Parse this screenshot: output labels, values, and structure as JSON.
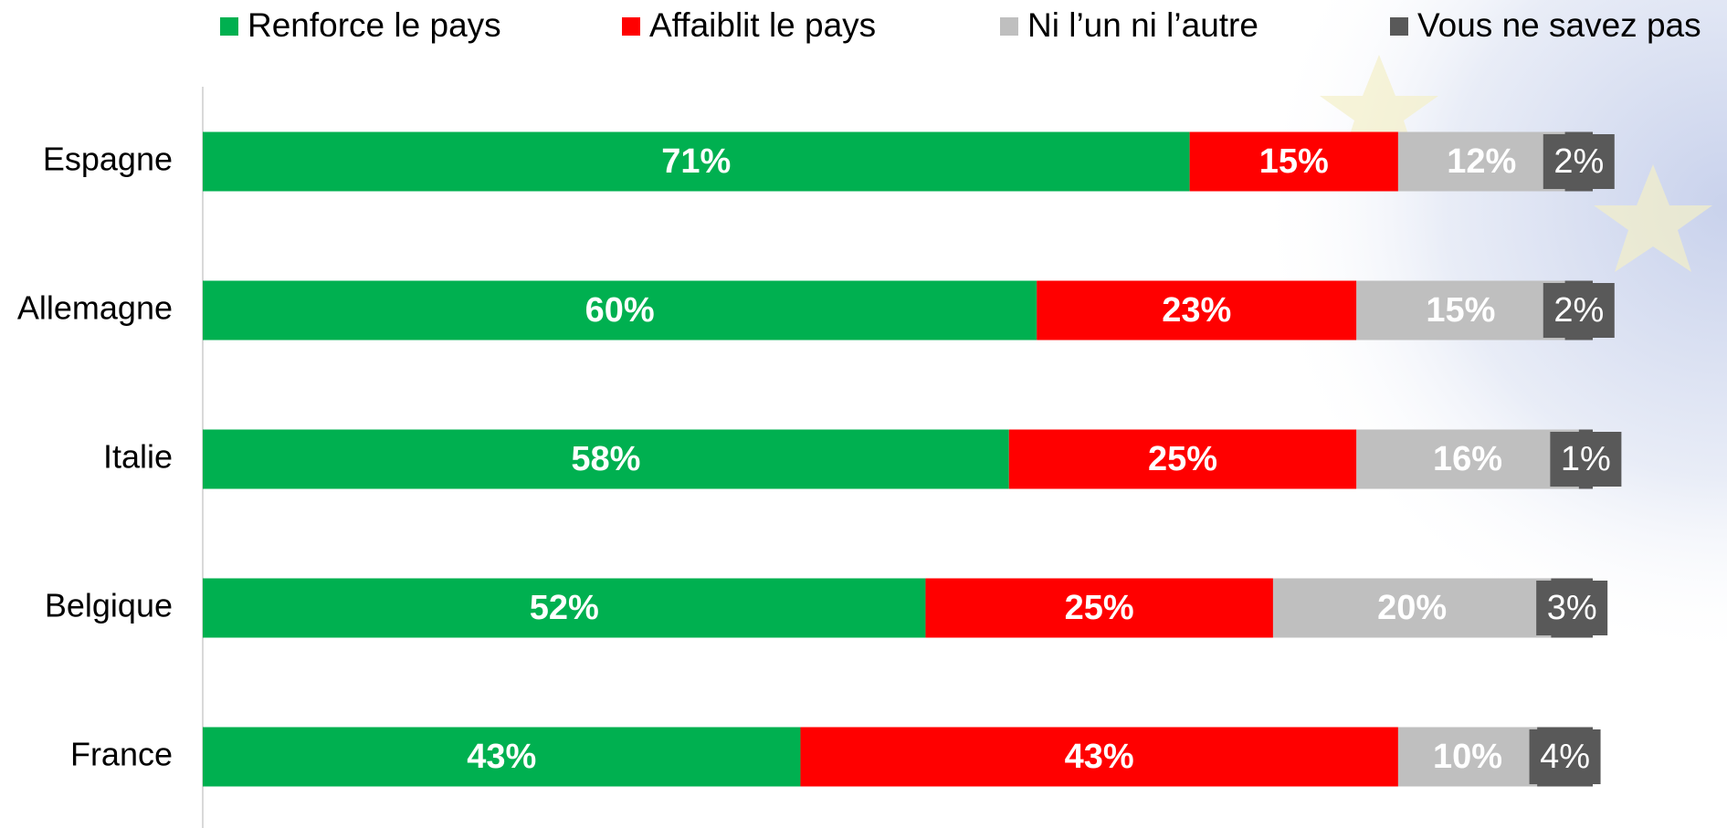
{
  "chart_data": {
    "type": "stacked-bar-horizontal",
    "categories": [
      "Espagne",
      "Allemagne",
      "Italie",
      "Belgique",
      "France"
    ],
    "series": [
      {
        "name": "Renforce le pays",
        "color": "#00b050",
        "values": [
          71,
          60,
          58,
          52,
          43
        ],
        "value_labels": [
          "71%",
          "60%",
          "58%",
          "52%",
          "43%"
        ]
      },
      {
        "name": "Affaiblit le pays",
        "color": "#ff0000",
        "values": [
          15,
          23,
          25,
          25,
          43
        ],
        "value_labels": [
          "15%",
          "23%",
          "25%",
          "25%",
          "43%"
        ]
      },
      {
        "name": "Ni l’un ni l’autre",
        "color": "#bfbfbf",
        "values": [
          12,
          15,
          16,
          20,
          10
        ],
        "value_labels": [
          "12%",
          "15%",
          "16%",
          "20%",
          "10%"
        ]
      },
      {
        "name": "Vous ne savez pas",
        "color": "#595959",
        "values": [
          2,
          2,
          1,
          3,
          4
        ],
        "value_labels": [
          "2%",
          "2%",
          "1%",
          "3%",
          "4%"
        ]
      }
    ],
    "legend": "top"
  }
}
